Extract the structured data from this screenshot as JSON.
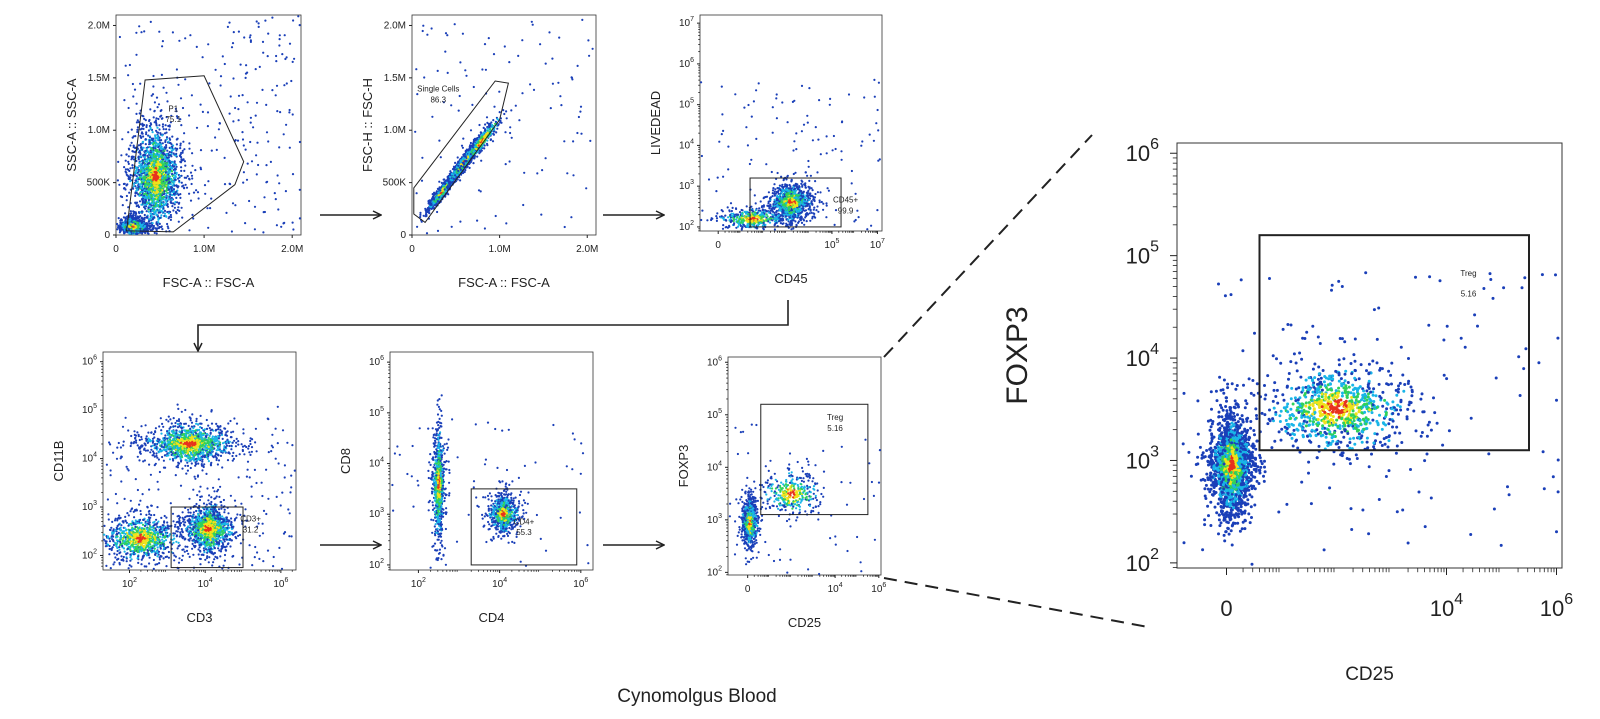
{
  "caption": "Cynomolgus Blood",
  "colors": {
    "low": "#1a3fb8",
    "mid1": "#19b5e8",
    "mid2": "#2fd15a",
    "mid3": "#f0e21a",
    "high": "#e8321e",
    "axis": "#222222"
  },
  "chart_data": [
    {
      "id": "p1",
      "type": "scatter",
      "subtype": "flow-cytometry-density",
      "xlabel": "FSC-A :: FSC-A",
      "ylabel": "SSC-A :: SSC-A",
      "xscale": "linear",
      "yscale": "linear",
      "xlim": [
        0,
        2100000
      ],
      "ylim": [
        0,
        2100000
      ],
      "xticks": [
        {
          "v": 0,
          "t": "0"
        },
        {
          "v": 1000000,
          "t": "1.0M"
        },
        {
          "v": 2000000,
          "t": "2.0M"
        }
      ],
      "yticks": [
        {
          "v": 0,
          "t": "0"
        },
        {
          "v": 500000,
          "t": "500K"
        },
        {
          "v": 1000000,
          "t": "1.0M"
        },
        {
          "v": 1500000,
          "t": "1.5M"
        },
        {
          "v": 2000000,
          "t": "2.0M"
        }
      ],
      "gate": {
        "name": "P1",
        "value": "75.1",
        "shape": "polygon",
        "points": [
          [
            120000,
            40000
          ],
          [
            330000,
            1480000
          ],
          [
            1000000,
            1520000
          ],
          [
            1450000,
            700000
          ],
          [
            1350000,
            480000
          ],
          [
            650000,
            30000
          ]
        ]
      },
      "clusters": [
        {
          "x": 200000,
          "y": 80000,
          "n": 1000,
          "sx": 80000,
          "sy": 40000,
          "spread": 2.0
        },
        {
          "x": 450000,
          "y": 550000,
          "n": 2200,
          "sx": 120000,
          "sy": 200000,
          "spread": 2.6
        }
      ],
      "scatter_n": 250
    },
    {
      "id": "p2",
      "type": "scatter",
      "subtype": "flow-cytometry-density",
      "xlabel": "FSC-A :: FSC-A",
      "ylabel": "FSC-H :: FSC-H",
      "xscale": "linear",
      "yscale": "linear",
      "xlim": [
        0,
        2100000
      ],
      "ylim": [
        0,
        2100000
      ],
      "xticks": [
        {
          "v": 0,
          "t": "0"
        },
        {
          "v": 1000000,
          "t": "1.0M"
        },
        {
          "v": 2000000,
          "t": "2.0M"
        }
      ],
      "yticks": [
        {
          "v": 0,
          "t": "0"
        },
        {
          "v": 500000,
          "t": "500K"
        },
        {
          "v": 1000000,
          "t": "1.0M"
        },
        {
          "v": 1500000,
          "t": "1.5M"
        },
        {
          "v": 2000000,
          "t": "2.0M"
        }
      ],
      "gate": {
        "name": "Single Cells",
        "value": "86.3",
        "shape": "polygon",
        "points": [
          [
            20000,
            200000
          ],
          [
            20000,
            450000
          ],
          [
            950000,
            1470000
          ],
          [
            1100000,
            1450000
          ],
          [
            1000000,
            1100000
          ],
          [
            150000,
            120000
          ]
        ]
      },
      "clusters": [
        {
          "x": 350000,
          "y": 420000,
          "n": 900,
          "sx": 90000,
          "sy": 90000,
          "spread": 1.6,
          "diag": 1.05
        },
        {
          "x": 600000,
          "y": 700000,
          "n": 900,
          "sx": 110000,
          "sy": 110000,
          "spread": 1.6,
          "diag": 1.05
        },
        {
          "x": 800000,
          "y": 900000,
          "n": 300,
          "sx": 120000,
          "sy": 120000,
          "spread": 1.8,
          "diag": 1.0
        }
      ],
      "scatter_n": 120
    },
    {
      "id": "p3",
      "type": "scatter",
      "subtype": "flow-cytometry-density",
      "xlabel": "CD45",
      "ylabel": "LIVEDEAD",
      "xscale": "log",
      "yscale": "log",
      "xlim": [
        -0.8,
        7.2
      ],
      "ylim": [
        1.9,
        7.2
      ],
      "xticks": [
        {
          "v": 0,
          "t": "0"
        },
        {
          "v": 5,
          "t": "10",
          "sup": "5"
        },
        {
          "v": 7,
          "t": "10",
          "sup": "7"
        }
      ],
      "yticks": [
        {
          "v": 2,
          "t": "10",
          "sup": "2"
        },
        {
          "v": 3,
          "t": "10",
          "sup": "3"
        },
        {
          "v": 4,
          "t": "10",
          "sup": "4"
        },
        {
          "v": 5,
          "t": "10",
          "sup": "5"
        },
        {
          "v": 6,
          "t": "10",
          "sup": "6"
        },
        {
          "v": 7,
          "t": "10",
          "sup": "7"
        }
      ],
      "gate": {
        "name": "CD45+",
        "value": "99.9",
        "shape": "rect",
        "x0": 1.4,
        "x1": 5.4,
        "y0": 2.0,
        "y1": 3.2
      },
      "clusters": [
        {
          "x": 3.2,
          "y": 2.6,
          "n": 1400,
          "sx": 0.45,
          "sy": 0.22,
          "spread": 2.0
        },
        {
          "x": 1.5,
          "y": 2.2,
          "n": 400,
          "sx": 0.9,
          "sy": 0.15,
          "spread": 1.6
        }
      ],
      "scatter_n": 120
    },
    {
      "id": "p4",
      "type": "scatter",
      "subtype": "flow-cytometry-density",
      "xlabel": "CD3",
      "ylabel": "CD11B",
      "xscale": "log",
      "yscale": "log",
      "xlim": [
        1.3,
        6.4
      ],
      "ylim": [
        1.7,
        6.2
      ],
      "xticks": [
        {
          "v": 2,
          "t": "10",
          "sup": "2"
        },
        {
          "v": 4,
          "t": "10",
          "sup": "4"
        },
        {
          "v": 6,
          "t": "10",
          "sup": "6"
        }
      ],
      "yticks": [
        {
          "v": 2,
          "t": "10",
          "sup": "2"
        },
        {
          "v": 3,
          "t": "10",
          "sup": "3"
        },
        {
          "v": 4,
          "t": "10",
          "sup": "4"
        },
        {
          "v": 5,
          "t": "10",
          "sup": "5"
        },
        {
          "v": 6,
          "t": "10",
          "sup": "6"
        }
      ],
      "gate": {
        "name": "CD3+",
        "value": "31.2",
        "shape": "rect",
        "x0": 3.1,
        "x1": 5.0,
        "y0": 1.75,
        "y1": 3.0
      },
      "clusters": [
        {
          "x": 3.6,
          "y": 4.3,
          "n": 1300,
          "sx": 0.65,
          "sy": 0.22,
          "spread": 1.9
        },
        {
          "x": 2.3,
          "y": 2.35,
          "n": 900,
          "sx": 0.6,
          "sy": 0.25,
          "spread": 1.8
        },
        {
          "x": 4.1,
          "y": 2.55,
          "n": 1200,
          "sx": 0.35,
          "sy": 0.28,
          "spread": 1.8
        }
      ],
      "scatter_n": 220
    },
    {
      "id": "p5",
      "type": "scatter",
      "subtype": "flow-cytometry-density",
      "xlabel": "CD4",
      "ylabel": "CD8",
      "xscale": "log",
      "yscale": "log",
      "xlim": [
        1.3,
        6.3
      ],
      "ylim": [
        1.9,
        6.2
      ],
      "xticks": [
        {
          "v": 2,
          "t": "10",
          "sup": "2"
        },
        {
          "v": 4,
          "t": "10",
          "sup": "4"
        },
        {
          "v": 6,
          "t": "10",
          "sup": "6"
        }
      ],
      "yticks": [
        {
          "v": 2,
          "t": "10",
          "sup": "2"
        },
        {
          "v": 3,
          "t": "10",
          "sup": "3"
        },
        {
          "v": 4,
          "t": "10",
          "sup": "4"
        },
        {
          "v": 5,
          "t": "10",
          "sup": "5"
        },
        {
          "v": 6,
          "t": "10",
          "sup": "6"
        }
      ],
      "gate": {
        "name": "CD4+",
        "value": "55.3",
        "shape": "rect",
        "x0": 3.3,
        "x1": 5.9,
        "y0": 2.0,
        "y1": 3.5
      },
      "clusters": [
        {
          "x": 2.5,
          "y": 3.6,
          "n": 800,
          "sx": 0.08,
          "sy": 0.6,
          "spread": 1.8
        },
        {
          "x": 4.1,
          "y": 3.0,
          "n": 800,
          "sx": 0.18,
          "sy": 0.18,
          "spread": 2.0
        }
      ],
      "scatter_n": 80
    },
    {
      "id": "p6",
      "type": "scatter",
      "subtype": "flow-cytometry-density",
      "xlabel": "CD25",
      "ylabel": "FOXP3",
      "xscale": "log",
      "yscale": "log",
      "xlim": [
        -0.9,
        6.1
      ],
      "ylim": [
        1.95,
        6.1
      ],
      "xticks": [
        {
          "v": 0,
          "t": "0"
        },
        {
          "v": 4,
          "t": "10",
          "sup": "4"
        },
        {
          "v": 6,
          "t": "10",
          "sup": "6"
        }
      ],
      "yticks": [
        {
          "v": 2,
          "t": "10",
          "sup": "2"
        },
        {
          "v": 3,
          "t": "10",
          "sup": "3"
        },
        {
          "v": 4,
          "t": "10",
          "sup": "4"
        },
        {
          "v": 5,
          "t": "10",
          "sup": "5"
        },
        {
          "v": 6,
          "t": "10",
          "sup": "6"
        }
      ],
      "gate": {
        "name": "Treg",
        "value": "5.16",
        "shape": "rect",
        "x0": 0.6,
        "x1": 5.5,
        "y0": 3.1,
        "y1": 5.2
      },
      "clusters": [
        {
          "x": 0.1,
          "y": 2.95,
          "n": 900,
          "sx": 0.18,
          "sy": 0.22,
          "spread": 2.0
        },
        {
          "x": 2.0,
          "y": 3.5,
          "n": 350,
          "sx": 0.8,
          "sy": 0.25,
          "spread": 1.6
        }
      ],
      "scatter_n": 60
    },
    {
      "id": "p7",
      "type": "scatter",
      "subtype": "flow-cytometry-density",
      "zoom_of": "p6",
      "xlabel": "CD25",
      "ylabel": "FOXP3",
      "xscale": "log",
      "yscale": "log",
      "xlim": [
        -0.9,
        6.1
      ],
      "ylim": [
        1.95,
        6.1
      ],
      "xticks": [
        {
          "v": 0,
          "t": "0"
        },
        {
          "v": 4,
          "t": "10",
          "sup": "4"
        },
        {
          "v": 6,
          "t": "10",
          "sup": "6"
        }
      ],
      "yticks": [
        {
          "v": 2,
          "t": "10",
          "sup": "2"
        },
        {
          "v": 3,
          "t": "10",
          "sup": "3"
        },
        {
          "v": 4,
          "t": "10",
          "sup": "4"
        },
        {
          "v": 5,
          "t": "10",
          "sup": "5"
        },
        {
          "v": 6,
          "t": "10",
          "sup": "6"
        }
      ],
      "gate": {
        "name": "Treg",
        "value": "5.16",
        "shape": "rect",
        "x0": 0.6,
        "x1": 5.5,
        "y0": 3.1,
        "y1": 5.2
      },
      "clusters": [
        {
          "x": 0.1,
          "y": 2.95,
          "n": 2200,
          "sx": 0.18,
          "sy": 0.22,
          "spread": 2.0
        },
        {
          "x": 2.0,
          "y": 3.5,
          "n": 900,
          "sx": 0.8,
          "sy": 0.25,
          "spread": 1.6
        }
      ],
      "scatter_n": 120
    }
  ]
}
